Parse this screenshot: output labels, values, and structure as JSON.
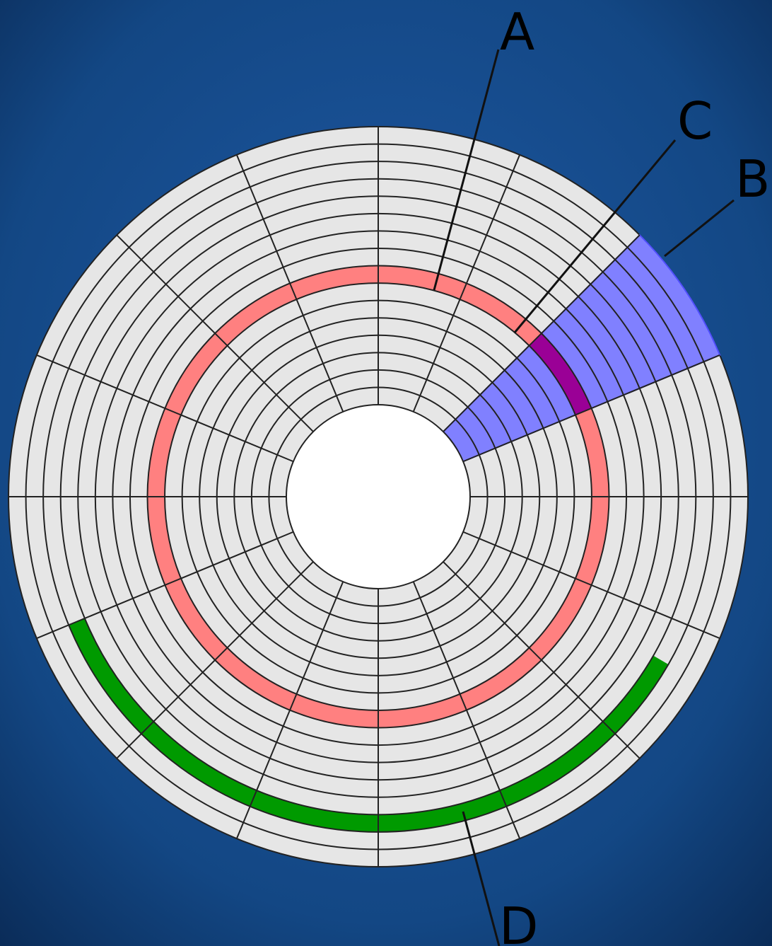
{
  "diagram": {
    "labels": [
      {
        "id": "A",
        "text": "A"
      },
      {
        "id": "B",
        "text": "B"
      },
      {
        "id": "C",
        "text": "C"
      },
      {
        "id": "D",
        "text": "D"
      }
    ],
    "track_count": 16,
    "sector_count": 8,
    "colors": {
      "background": "#0f3a74",
      "platter": "#e6e6e6",
      "hub": "#ffffff",
      "lines": "#222222",
      "track_highlight": "#ff8080",
      "sector_highlight": "#8080ff",
      "track_sector": "#9a0096",
      "cluster": "#009a00"
    }
  }
}
